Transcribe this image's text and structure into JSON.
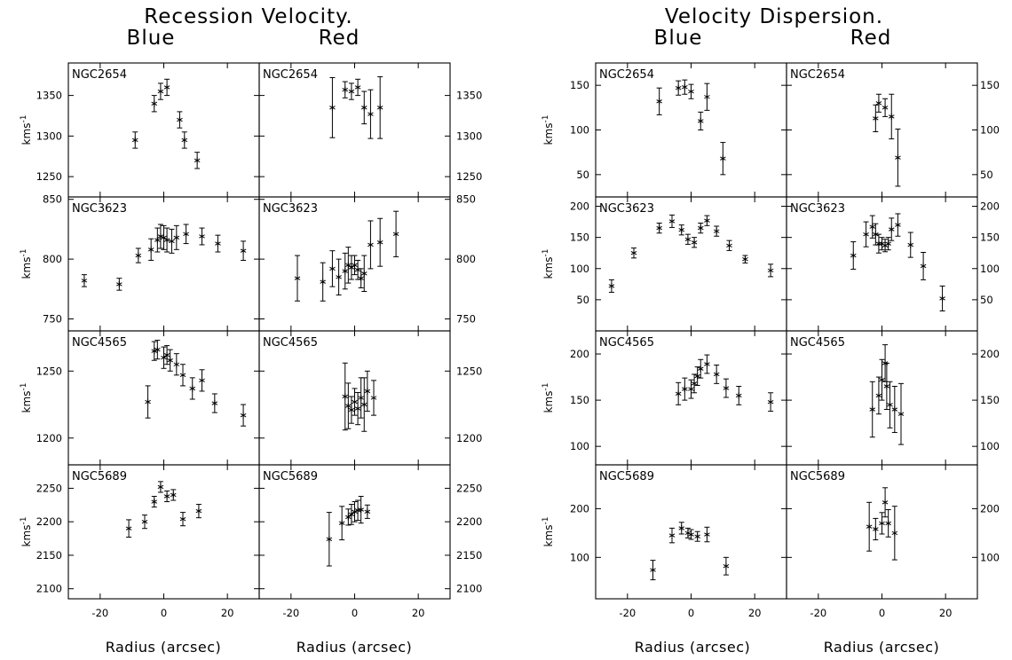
{
  "titles": {
    "left": "Recession Velocity.",
    "right": "Velocity Dispersion.",
    "blue": "Blue",
    "red": "Red"
  },
  "xlabel": "Radius (arcsec)",
  "ylabel_base": "kms",
  "ylabel_sup": "-1",
  "galaxies": [
    "NGC2654",
    "NGC3623",
    "NGC4565",
    "NGC5689"
  ],
  "chart_data": [
    {
      "type": "scatter",
      "title": "Recession Velocity.",
      "xlabel": "Radius (arcsec)",
      "ylabel": "kms-1",
      "xlim": [
        -30,
        30
      ],
      "xticks": [
        -20,
        0,
        20
      ],
      "columns": [
        "Blue",
        "Red"
      ],
      "rows": [
        {
          "galaxy": "NGC2654",
          "ylim": [
            1225,
            1390
          ],
          "yticks": [
            1250,
            1300,
            1350
          ],
          "blue": [
            {
              "x": -9,
              "y": 1295,
              "err": 10
            },
            {
              "x": -3,
              "y": 1340,
              "err": 10
            },
            {
              "x": -1,
              "y": 1355,
              "err": 10
            },
            {
              "x": 1,
              "y": 1360,
              "err": 10
            },
            {
              "x": 5,
              "y": 1320,
              "err": 10
            },
            {
              "x": 6.5,
              "y": 1295,
              "err": 10
            },
            {
              "x": 10.5,
              "y": 1270,
              "err": 10
            }
          ],
          "red": [
            {
              "x": -7,
              "y": 1335,
              "err": 37
            },
            {
              "x": -3,
              "y": 1357,
              "err": 10
            },
            {
              "x": -1,
              "y": 1355,
              "err": 10
            },
            {
              "x": 1,
              "y": 1360,
              "err": 10
            },
            {
              "x": 3,
              "y": 1335,
              "err": 20
            },
            {
              "x": 5,
              "y": 1327,
              "err": 30
            },
            {
              "x": 8,
              "y": 1335,
              "err": 38
            }
          ]
        },
        {
          "galaxy": "NGC3623",
          "ylim": [
            740,
            852
          ],
          "yticks": [
            750,
            800,
            850
          ],
          "blue": [
            {
              "x": -25,
              "y": 782,
              "err": 5
            },
            {
              "x": -14,
              "y": 779,
              "err": 5
            },
            {
              "x": -8,
              "y": 803,
              "err": 6
            },
            {
              "x": -4,
              "y": 808,
              "err": 9
            },
            {
              "x": -2,
              "y": 816,
              "err": 10
            },
            {
              "x": -1,
              "y": 819,
              "err": 10
            },
            {
              "x": 0,
              "y": 818,
              "err": 10
            },
            {
              "x": 1,
              "y": 816,
              "err": 10
            },
            {
              "x": 2.5,
              "y": 815,
              "err": 10
            },
            {
              "x": 4,
              "y": 818,
              "err": 10
            },
            {
              "x": 7,
              "y": 821,
              "err": 8
            },
            {
              "x": 12,
              "y": 819,
              "err": 7
            },
            {
              "x": 17,
              "y": 813,
              "err": 7
            },
            {
              "x": 25,
              "y": 807,
              "err": 8
            }
          ],
          "red": [
            {
              "x": -18,
              "y": 784,
              "err": 19
            },
            {
              "x": -10,
              "y": 781,
              "err": 16
            },
            {
              "x": -7,
              "y": 792,
              "err": 15
            },
            {
              "x": -5,
              "y": 785,
              "err": 15
            },
            {
              "x": -3,
              "y": 790,
              "err": 15
            },
            {
              "x": -2,
              "y": 795,
              "err": 15
            },
            {
              "x": -1,
              "y": 793,
              "err": 10
            },
            {
              "x": 0,
              "y": 795,
              "err": 8
            },
            {
              "x": 1,
              "y": 791,
              "err": 8
            },
            {
              "x": 2,
              "y": 784,
              "err": 8
            },
            {
              "x": 3,
              "y": 788,
              "err": 15
            },
            {
              "x": 5,
              "y": 812,
              "err": 20
            },
            {
              "x": 8,
              "y": 814,
              "err": 20
            },
            {
              "x": 13,
              "y": 821,
              "err": 19
            }
          ]
        },
        {
          "galaxy": "NGC4565",
          "ylim": [
            1180,
            1280
          ],
          "yticks": [
            1200,
            1250
          ],
          "blue": [
            {
              "x": -5,
              "y": 1227,
              "err": 12
            },
            {
              "x": -3,
              "y": 1265,
              "err": 7
            },
            {
              "x": -2,
              "y": 1266,
              "err": 7
            },
            {
              "x": 0,
              "y": 1260,
              "err": 8
            },
            {
              "x": 1,
              "y": 1262,
              "err": 7
            },
            {
              "x": 2,
              "y": 1258,
              "err": 8
            },
            {
              "x": 4,
              "y": 1255,
              "err": 8
            },
            {
              "x": 6,
              "y": 1247,
              "err": 8
            },
            {
              "x": 9,
              "y": 1237,
              "err": 8
            },
            {
              "x": 12,
              "y": 1243,
              "err": 8
            },
            {
              "x": 16,
              "y": 1226,
              "err": 7
            },
            {
              "x": 25,
              "y": 1217,
              "err": 8
            }
          ],
          "red": [
            {
              "x": -3,
              "y": 1231,
              "err": 25
            },
            {
              "x": -2,
              "y": 1224,
              "err": 17
            },
            {
              "x": -1,
              "y": 1221,
              "err": 10
            },
            {
              "x": 0,
              "y": 1227,
              "err": 10
            },
            {
              "x": 1,
              "y": 1222,
              "err": 12
            },
            {
              "x": 2,
              "y": 1230,
              "err": 15
            },
            {
              "x": 3,
              "y": 1225,
              "err": 20
            },
            {
              "x": 4,
              "y": 1235,
              "err": 15
            },
            {
              "x": 6,
              "y": 1230,
              "err": 13
            }
          ]
        },
        {
          "galaxy": "NGC5689",
          "ylim": [
            2085,
            2285
          ],
          "yticks": [
            2100,
            2150,
            2200,
            2250
          ],
          "blue": [
            {
              "x": -11,
              "y": 2190,
              "err": 13
            },
            {
              "x": -6,
              "y": 2200,
              "err": 10
            },
            {
              "x": -3,
              "y": 2230,
              "err": 8
            },
            {
              "x": -1,
              "y": 2252,
              "err": 8
            },
            {
              "x": 1,
              "y": 2238,
              "err": 8
            },
            {
              "x": 3,
              "y": 2240,
              "err": 8
            },
            {
              "x": 6,
              "y": 2204,
              "err": 10
            },
            {
              "x": 11,
              "y": 2216,
              "err": 10
            }
          ],
          "red": [
            {
              "x": -8,
              "y": 2174,
              "err": 40
            },
            {
              "x": -4,
              "y": 2198,
              "err": 25
            },
            {
              "x": -2,
              "y": 2207,
              "err": 12
            },
            {
              "x": -1,
              "y": 2211,
              "err": 15
            },
            {
              "x": 0,
              "y": 2215,
              "err": 15
            },
            {
              "x": 1,
              "y": 2217,
              "err": 15
            },
            {
              "x": 2,
              "y": 2218,
              "err": 20
            },
            {
              "x": 4,
              "y": 2215,
              "err": 10
            }
          ]
        }
      ]
    },
    {
      "type": "scatter",
      "title": "Velocity Dispersion.",
      "xlabel": "Radius (arcsec)",
      "ylabel": "kms-1",
      "xlim": [
        -30,
        30
      ],
      "xticks": [
        -20,
        0,
        20
      ],
      "columns": [
        "Blue",
        "Red"
      ],
      "rows": [
        {
          "galaxy": "NGC2654",
          "ylim": [
            25,
            175
          ],
          "yticks": [
            50,
            100,
            150
          ],
          "blue": [
            {
              "x": -10,
              "y": 132,
              "err": 15
            },
            {
              "x": -4,
              "y": 147,
              "err": 8
            },
            {
              "x": -2,
              "y": 148,
              "err": 8
            },
            {
              "x": 0,
              "y": 143,
              "err": 8
            },
            {
              "x": 3,
              "y": 110,
              "err": 10
            },
            {
              "x": 5,
              "y": 137,
              "err": 15
            },
            {
              "x": 10,
              "y": 68,
              "err": 18
            }
          ],
          "red": [
            {
              "x": -2,
              "y": 113,
              "err": 15
            },
            {
              "x": -1,
              "y": 130,
              "err": 10
            },
            {
              "x": 1,
              "y": 125,
              "err": 10
            },
            {
              "x": 3,
              "y": 115,
              "err": 25
            },
            {
              "x": 5,
              "y": 69,
              "err": 32
            }
          ]
        },
        {
          "galaxy": "NGC3623",
          "ylim": [
            0,
            215
          ],
          "yticks": [
            50,
            100,
            150,
            200
          ],
          "blue": [
            {
              "x": -25,
              "y": 72,
              "err": 10
            },
            {
              "x": -18,
              "y": 125,
              "err": 8
            },
            {
              "x": -10,
              "y": 165,
              "err": 8
            },
            {
              "x": -6,
              "y": 176,
              "err": 10
            },
            {
              "x": -3,
              "y": 162,
              "err": 8
            },
            {
              "x": -1,
              "y": 147,
              "err": 8
            },
            {
              "x": 1,
              "y": 142,
              "err": 8
            },
            {
              "x": 3,
              "y": 165,
              "err": 8
            },
            {
              "x": 5,
              "y": 177,
              "err": 8
            },
            {
              "x": 8,
              "y": 160,
              "err": 8
            },
            {
              "x": 12,
              "y": 137,
              "err": 8
            },
            {
              "x": 17,
              "y": 115,
              "err": 6
            },
            {
              "x": 25,
              "y": 97,
              "err": 10
            }
          ],
          "red": [
            {
              "x": -9,
              "y": 121,
              "err": 22
            },
            {
              "x": -5,
              "y": 155,
              "err": 20
            },
            {
              "x": -3,
              "y": 167,
              "err": 18
            },
            {
              "x": -2,
              "y": 155,
              "err": 17
            },
            {
              "x": -1,
              "y": 140,
              "err": 15
            },
            {
              "x": 0,
              "y": 140,
              "err": 10
            },
            {
              "x": 1,
              "y": 137,
              "err": 10
            },
            {
              "x": 2,
              "y": 140,
              "err": 10
            },
            {
              "x": 3,
              "y": 163,
              "err": 18
            },
            {
              "x": 5,
              "y": 170,
              "err": 18
            },
            {
              "x": 9,
              "y": 138,
              "err": 20
            },
            {
              "x": 13,
              "y": 104,
              "err": 22
            },
            {
              "x": 19,
              "y": 52,
              "err": 20
            }
          ]
        },
        {
          "galaxy": "NGC4565",
          "ylim": [
            80,
            225
          ],
          "yticks": [
            100,
            150,
            200
          ],
          "blue": [
            {
              "x": -4,
              "y": 157,
              "err": 12
            },
            {
              "x": -2,
              "y": 162,
              "err": 12
            },
            {
              "x": 0,
              "y": 162,
              "err": 10
            },
            {
              "x": 1,
              "y": 168,
              "err": 10
            },
            {
              "x": 2,
              "y": 176,
              "err": 10
            },
            {
              "x": 3,
              "y": 184,
              "err": 10
            },
            {
              "x": 5,
              "y": 189,
              "err": 10
            },
            {
              "x": 8,
              "y": 178,
              "err": 10
            },
            {
              "x": 11,
              "y": 163,
              "err": 10
            },
            {
              "x": 15,
              "y": 155,
              "err": 10
            },
            {
              "x": 25,
              "y": 148,
              "err": 10
            }
          ],
          "red": [
            {
              "x": -3,
              "y": 140,
              "err": 30
            },
            {
              "x": -1,
              "y": 155,
              "err": 20
            },
            {
              "x": 0,
              "y": 172,
              "err": 22
            },
            {
              "x": 1,
              "y": 190,
              "err": 20
            },
            {
              "x": 1.5,
              "y": 165,
              "err": 25
            },
            {
              "x": 2.5,
              "y": 145,
              "err": 25
            },
            {
              "x": 4,
              "y": 140,
              "err": 25
            },
            {
              "x": 6,
              "y": 135,
              "err": 33
            }
          ]
        },
        {
          "galaxy": "NGC5689",
          "ylim": [
            15,
            290
          ],
          "yticks": [
            100,
            200
          ],
          "blue": [
            {
              "x": -12,
              "y": 74,
              "err": 20
            },
            {
              "x": -6,
              "y": 145,
              "err": 15
            },
            {
              "x": -3,
              "y": 160,
              "err": 12
            },
            {
              "x": -1,
              "y": 150,
              "err": 10
            },
            {
              "x": 0,
              "y": 147,
              "err": 10
            },
            {
              "x": 2,
              "y": 143,
              "err": 10
            },
            {
              "x": 5,
              "y": 147,
              "err": 15
            },
            {
              "x": 11,
              "y": 82,
              "err": 18
            }
          ],
          "red": [
            {
              "x": -4,
              "y": 163,
              "err": 50
            },
            {
              "x": -2,
              "y": 158,
              "err": 22
            },
            {
              "x": 0,
              "y": 170,
              "err": 22
            },
            {
              "x": 1,
              "y": 213,
              "err": 30
            },
            {
              "x": 2,
              "y": 170,
              "err": 28
            },
            {
              "x": 4,
              "y": 150,
              "err": 55
            }
          ]
        }
      ]
    }
  ]
}
